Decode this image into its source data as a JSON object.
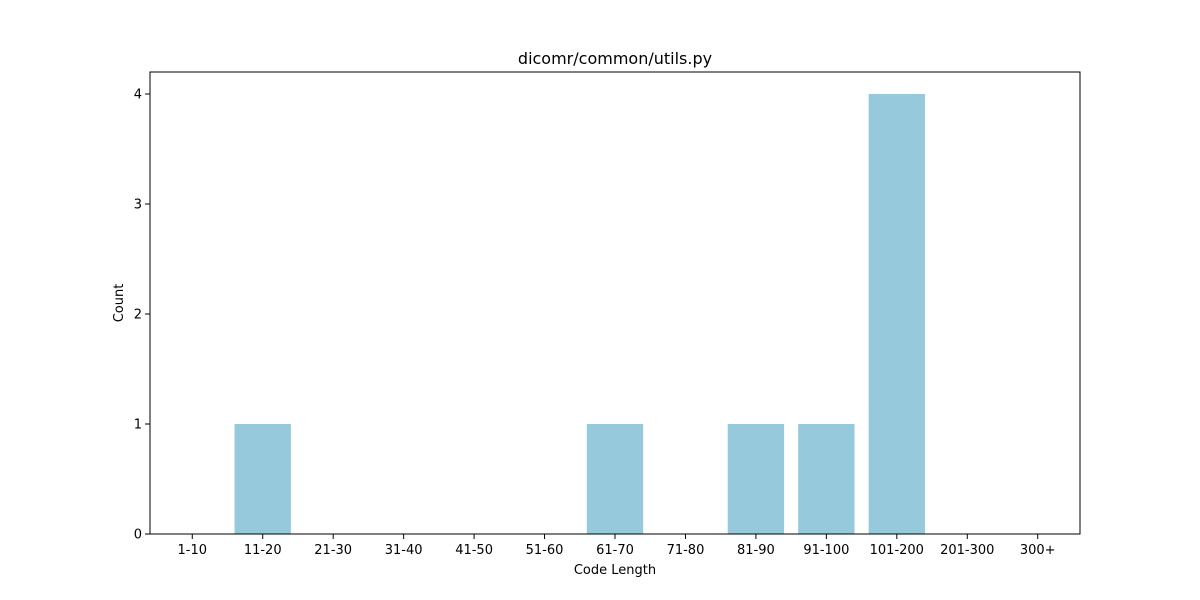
{
  "chart_data": {
    "type": "bar",
    "title": "dicomr/common/utils.py",
    "xlabel": "Code Length",
    "ylabel": "Count",
    "categories": [
      "1-10",
      "11-20",
      "21-30",
      "31-40",
      "41-50",
      "51-60",
      "61-70",
      "71-80",
      "81-90",
      "91-100",
      "101-200",
      "201-300",
      "300+"
    ],
    "values": [
      0,
      1,
      0,
      0,
      0,
      0,
      1,
      0,
      1,
      1,
      4,
      0,
      0
    ],
    "yticks": [
      0,
      1,
      2,
      3,
      4
    ],
    "ylim": [
      0,
      4.2
    ],
    "grid": false,
    "bar_color": "#96c9dc",
    "axis_color": "#000000"
  }
}
